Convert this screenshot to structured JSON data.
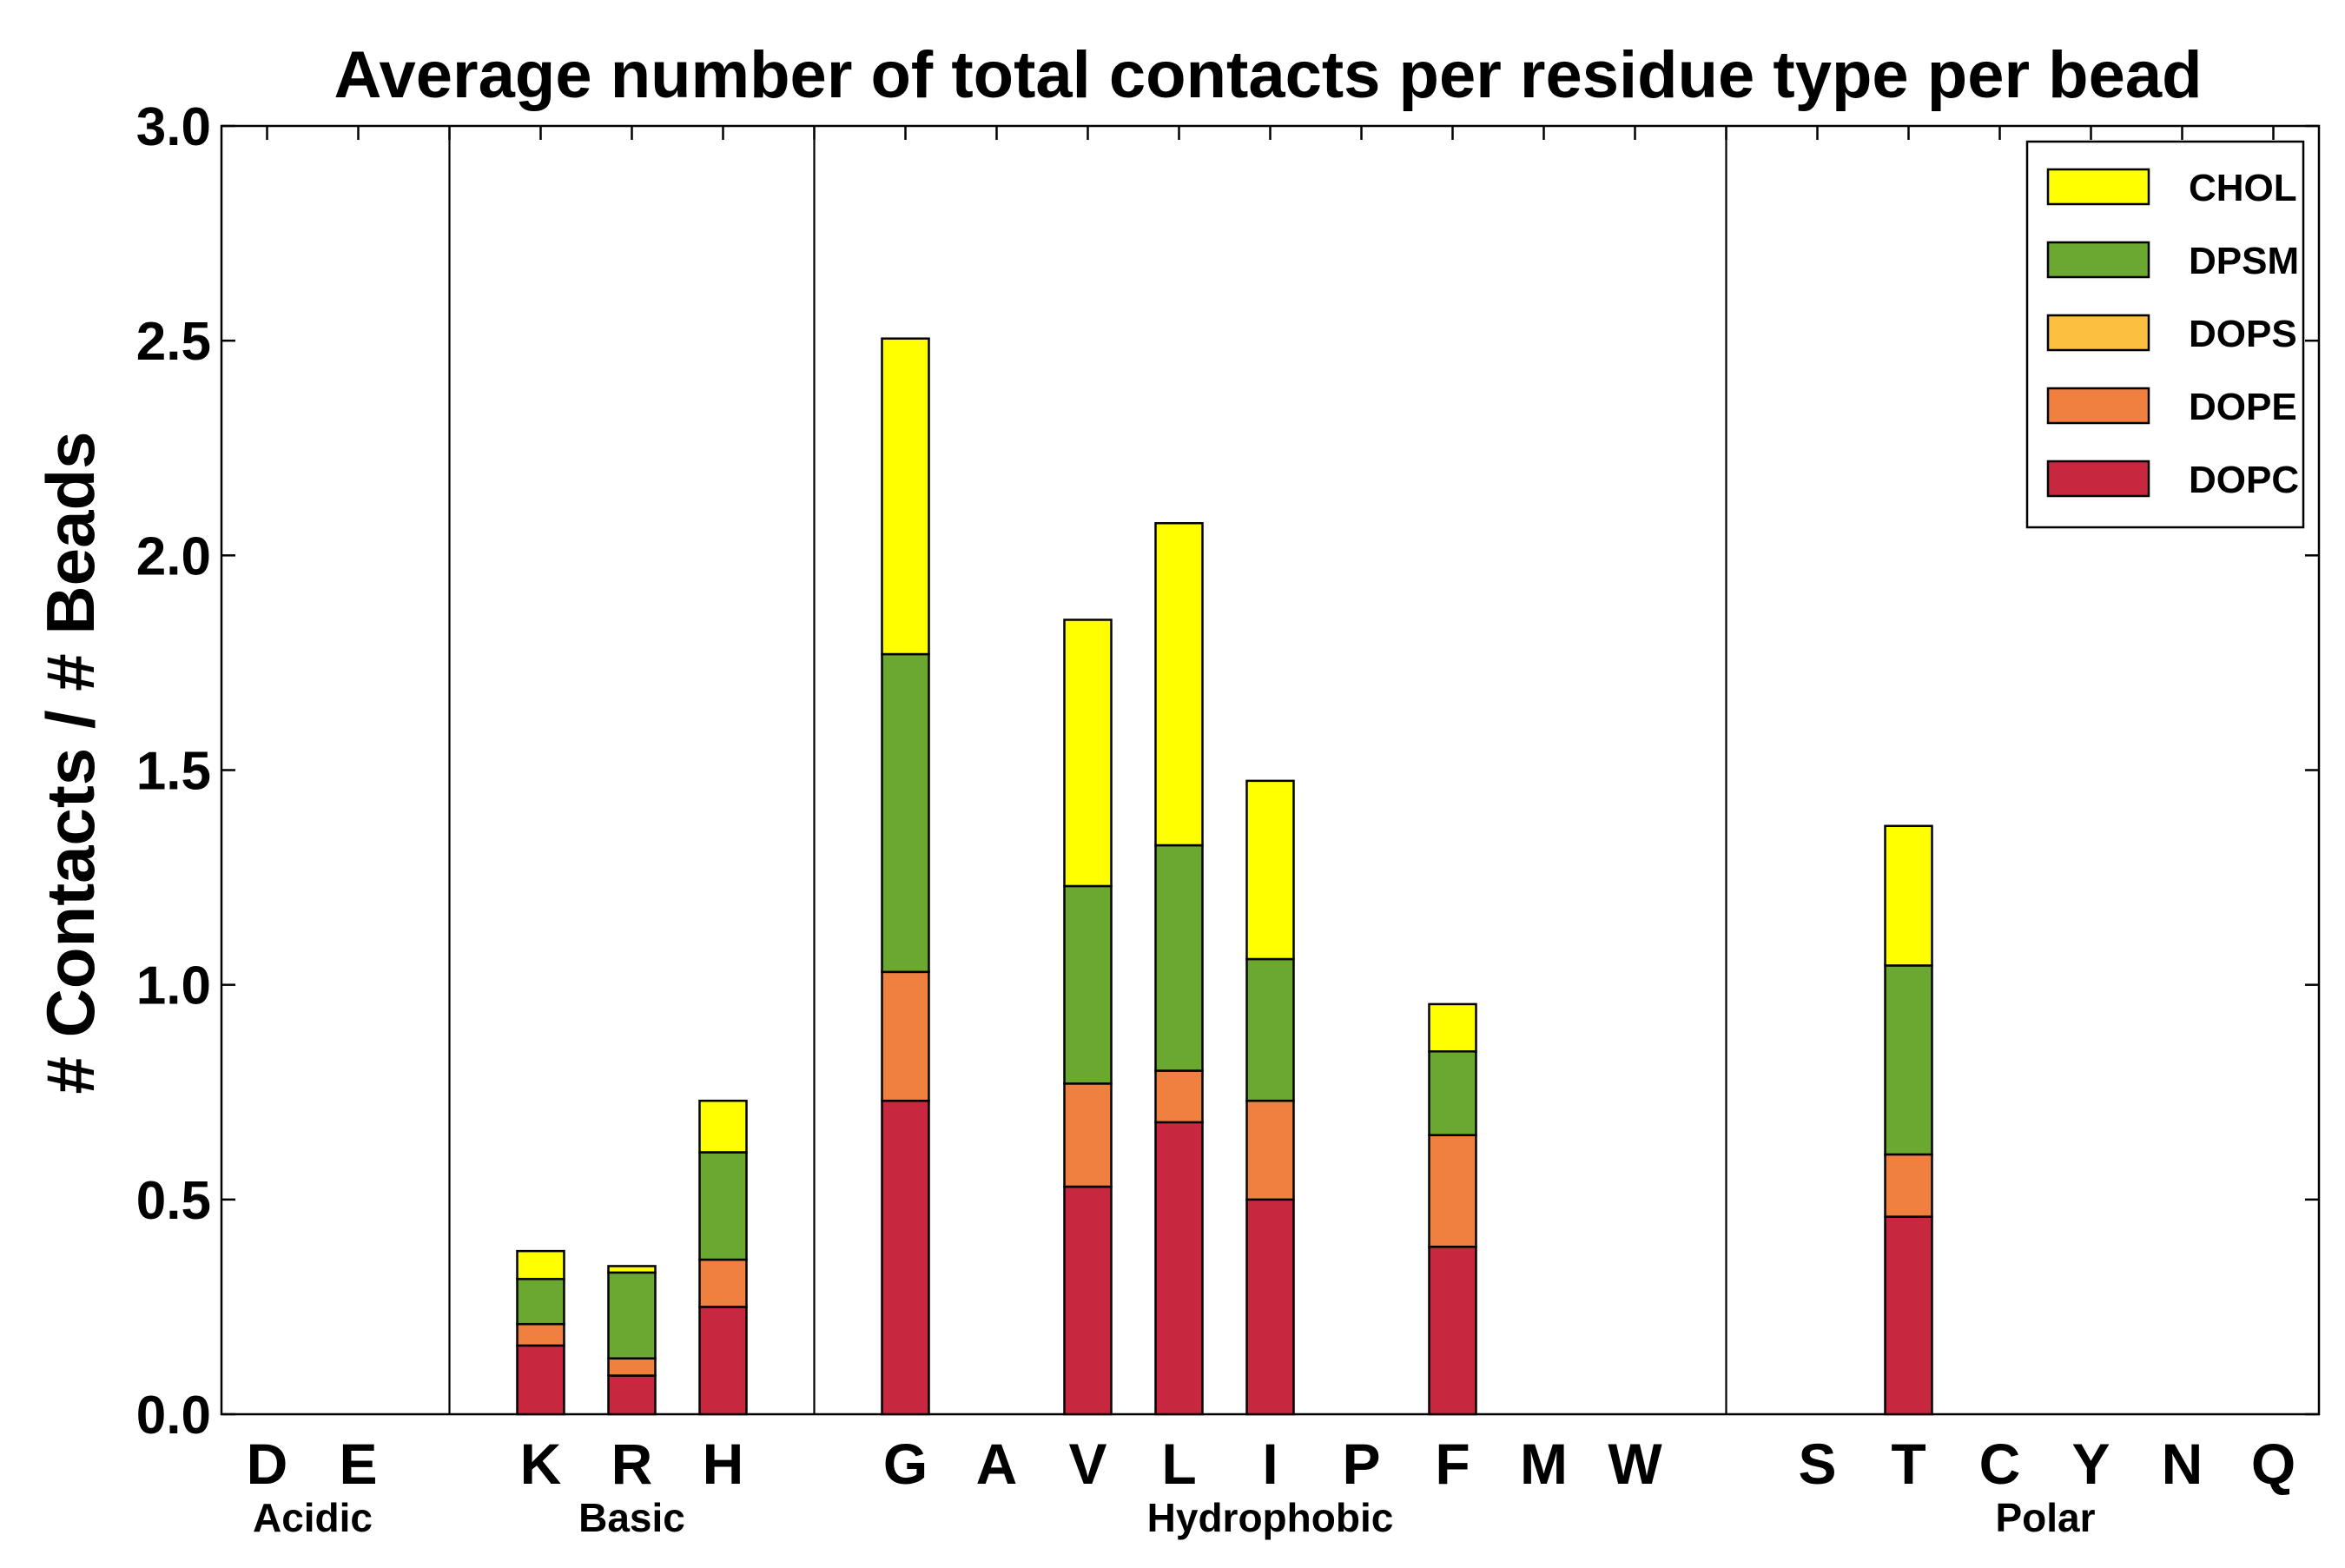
{
  "chart_data": {
    "type": "bar",
    "stacked": true,
    "title": "Average number of total contacts per residue type per bead",
    "ylabel": "# Contacts / # Beads",
    "xlabel": "",
    "ylim": [
      0,
      3.0
    ],
    "yticks": [
      "0.0",
      "0.5",
      "1.0",
      "1.5",
      "2.0",
      "2.5",
      "3.0"
    ],
    "categories": [
      "D",
      "E",
      "",
      "K",
      "R",
      "H",
      "",
      "G",
      "A",
      "V",
      "L",
      "I",
      "P",
      "F",
      "M",
      "W",
      "",
      "S",
      "T",
      "C",
      "Y",
      "N",
      "Q"
    ],
    "groups": [
      {
        "name": "Acidic",
        "categories": [
          "D",
          "E"
        ]
      },
      {
        "name": "Basic",
        "categories": [
          "K",
          "R",
          "H"
        ]
      },
      {
        "name": "Hydrophobic",
        "categories": [
          "G",
          "A",
          "V",
          "L",
          "I",
          "P",
          "F",
          "M",
          "W"
        ]
      },
      {
        "name": "Polar",
        "categories": [
          "S",
          "T",
          "C",
          "Y",
          "N",
          "Q"
        ]
      }
    ],
    "series": [
      {
        "name": "DOPC",
        "color": "#c8283f",
        "values": [
          0,
          0,
          0,
          0.16,
          0.09,
          0.25,
          0,
          0.73,
          0,
          0.53,
          0.68,
          0.5,
          0,
          0.39,
          0,
          0,
          0,
          0,
          0.46,
          0,
          0,
          0,
          0
        ]
      },
      {
        "name": "DOPE",
        "color": "#f08040",
        "values": [
          0,
          0,
          0,
          0.05,
          0.04,
          0.11,
          0,
          0.3,
          0,
          0.24,
          0.12,
          0.23,
          0,
          0.26,
          0,
          0,
          0,
          0,
          0.145,
          0,
          0,
          0,
          0
        ]
      },
      {
        "name": "DOPS",
        "color": "#fbc040",
        "values": [
          0,
          0,
          0,
          0,
          0,
          0,
          0,
          0,
          0,
          0,
          0,
          0,
          0,
          0,
          0,
          0,
          0,
          0,
          0,
          0,
          0,
          0,
          0
        ]
      },
      {
        "name": "DPSM",
        "color": "#6aa82f",
        "values": [
          0,
          0,
          0,
          0.105,
          0.2,
          0.25,
          0,
          0.74,
          0,
          0.46,
          0.525,
          0.33,
          0,
          0.195,
          0,
          0,
          0,
          0,
          0.44,
          0,
          0,
          0,
          0
        ]
      },
      {
        "name": "CHOL",
        "color": "#ffff00",
        "values": [
          0,
          0,
          0,
          0.065,
          0.015,
          0.12,
          0,
          0.735,
          0,
          0.62,
          0.75,
          0.415,
          0,
          0.11,
          0,
          0,
          0,
          0,
          0.325,
          0,
          0,
          0,
          0
        ]
      }
    ],
    "legend": {
      "position": "top-right",
      "order": [
        "CHOL",
        "DPSM",
        "DOPS",
        "DOPE",
        "DOPC"
      ]
    },
    "grid": false
  }
}
